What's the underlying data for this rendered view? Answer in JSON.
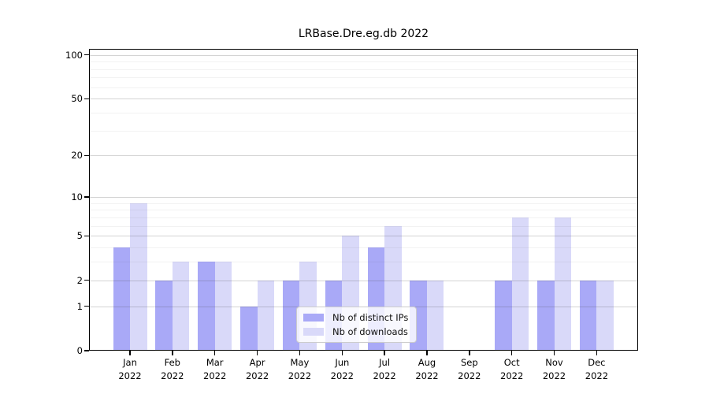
{
  "title": "LRBase.Dre.eg.db 2022",
  "chart_data": {
    "type": "bar",
    "title": "LRBase.Dre.eg.db 2022",
    "categories": [
      "Jan",
      "Feb",
      "Mar",
      "Apr",
      "May",
      "Jun",
      "Jul",
      "Aug",
      "Sep",
      "Oct",
      "Nov",
      "Dec"
    ],
    "year_label": "2022",
    "series": [
      {
        "name": "Nb of distinct IPs",
        "color": "#a9a9f7",
        "values": [
          4,
          2,
          3,
          1,
          2,
          2,
          4,
          2,
          0,
          2,
          2,
          2
        ]
      },
      {
        "name": "Nb of downloads",
        "color": "#d9d9f9",
        "values": [
          9,
          3,
          3,
          2,
          3,
          5,
          6,
          2,
          0,
          7,
          7,
          2
        ]
      }
    ],
    "xlabel": "",
    "ylabel": "",
    "yscale": "log1p",
    "ylim": [
      0,
      110
    ],
    "yticks": [
      100,
      50,
      20,
      10,
      5,
      2,
      1,
      0
    ],
    "minor_gridlines": [
      3,
      4,
      6,
      7,
      8,
      9,
      30,
      40,
      60,
      70,
      80,
      90
    ],
    "grid": true,
    "legend_position": "lower center"
  },
  "colors": {
    "background": "#ffffff",
    "axis": "#000000",
    "bar_distinct_ips": "#a9a9f7",
    "bar_downloads": "#d9d9f9",
    "grid_major": "#d2d2d2",
    "grid_minor": "#efefef"
  }
}
